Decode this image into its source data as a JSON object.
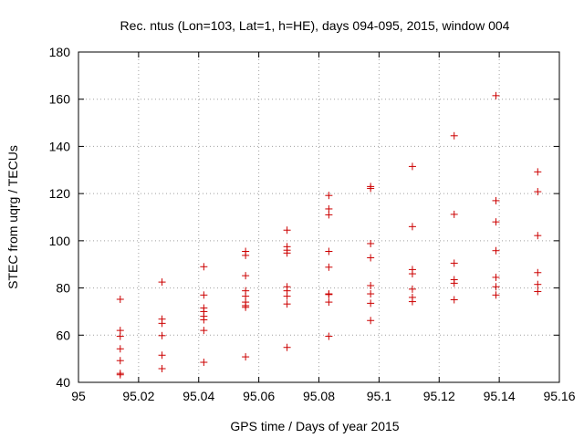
{
  "chart_data": {
    "type": "scatter",
    "title": "Rec. ntus (Lon=103, Lat=1, h=HE), days 094-095, 2015, window 004",
    "xlabel": "GPS time / Days of year 2015",
    "ylabel": "STEC from uqrg / TECUs",
    "xlim": [
      95,
      95.16
    ],
    "ylim": [
      40,
      180
    ],
    "xticks": [
      "95",
      "95.02",
      "95.04",
      "95.06",
      "95.08",
      "95.1",
      "95.12",
      "95.14",
      "95.16"
    ],
    "yticks": [
      "40",
      "60",
      "80",
      "100",
      "120",
      "140",
      "160",
      "180"
    ],
    "grid": true,
    "marker": "+",
    "color": "#cc0000",
    "series": [
      {
        "points": [
          [
            95.0139,
            75.2
          ],
          [
            95.0139,
            62.0
          ],
          [
            95.0139,
            59.5
          ],
          [
            95.0139,
            54.2
          ],
          [
            95.0139,
            49.2
          ],
          [
            95.0139,
            43.8
          ],
          [
            95.0139,
            43.2
          ],
          [
            95.0278,
            82.5
          ],
          [
            95.0278,
            66.8
          ],
          [
            95.0278,
            65.0
          ],
          [
            95.0278,
            59.8
          ],
          [
            95.0278,
            51.5
          ],
          [
            95.0278,
            45.8
          ],
          [
            95.0417,
            89.0
          ],
          [
            95.0417,
            77.0
          ],
          [
            95.0417,
            71.5
          ],
          [
            95.0417,
            70.0
          ],
          [
            95.0417,
            68.0
          ],
          [
            95.0417,
            66.5
          ],
          [
            95.0417,
            62.0
          ],
          [
            95.0417,
            48.5
          ],
          [
            95.0556,
            95.5
          ],
          [
            95.0556,
            93.8
          ],
          [
            95.0556,
            85.2
          ],
          [
            95.0556,
            78.8
          ],
          [
            95.0556,
            76.5
          ],
          [
            95.0556,
            74.0
          ],
          [
            95.0556,
            72.5
          ],
          [
            95.0556,
            71.8
          ],
          [
            95.0556,
            50.8
          ],
          [
            95.0694,
            104.5
          ],
          [
            95.0694,
            97.5
          ],
          [
            95.0694,
            96.0
          ],
          [
            95.0694,
            94.8
          ],
          [
            95.0694,
            80.5
          ],
          [
            95.0694,
            78.8
          ],
          [
            95.0694,
            76.5
          ],
          [
            95.0694,
            73.2
          ],
          [
            95.0694,
            54.8
          ],
          [
            95.0833,
            119.2
          ],
          [
            95.0833,
            113.5
          ],
          [
            95.0833,
            111.0
          ],
          [
            95.0833,
            95.5
          ],
          [
            95.0833,
            88.8
          ],
          [
            95.0833,
            77.5
          ],
          [
            95.0833,
            77.2
          ],
          [
            95.0833,
            74.0
          ],
          [
            95.0833,
            59.5
          ],
          [
            95.0972,
            123.0
          ],
          [
            95.0972,
            122.2
          ],
          [
            95.0972,
            98.8
          ],
          [
            95.0972,
            92.8
          ],
          [
            95.0972,
            81.0
          ],
          [
            95.0972,
            77.5
          ],
          [
            95.0972,
            73.5
          ],
          [
            95.0972,
            66.2
          ],
          [
            95.1111,
            131.5
          ],
          [
            95.1111,
            106.0
          ],
          [
            95.1111,
            87.8
          ],
          [
            95.1111,
            86.0
          ],
          [
            95.1111,
            79.5
          ],
          [
            95.1111,
            76.0
          ],
          [
            95.1111,
            74.2
          ],
          [
            95.125,
            144.5
          ],
          [
            95.125,
            111.2
          ],
          [
            95.125,
            90.5
          ],
          [
            95.125,
            83.5
          ],
          [
            95.125,
            82.0
          ],
          [
            95.125,
            75.0
          ],
          [
            95.1389,
            161.5
          ],
          [
            95.1389,
            117.0
          ],
          [
            95.1389,
            108.0
          ],
          [
            95.1389,
            95.8
          ],
          [
            95.1389,
            84.5
          ],
          [
            95.1389,
            80.5
          ],
          [
            95.1389,
            77.0
          ],
          [
            95.1528,
            129.2
          ],
          [
            95.1528,
            120.8
          ],
          [
            95.1528,
            102.2
          ],
          [
            95.1528,
            86.5
          ],
          [
            95.1528,
            81.5
          ],
          [
            95.1528,
            78.5
          ]
        ]
      }
    ]
  }
}
